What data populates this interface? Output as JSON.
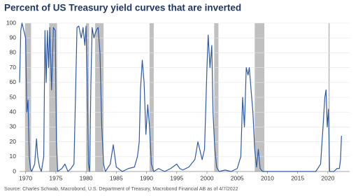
{
  "chart_data": {
    "type": "line",
    "title": "Percent of US Treasury yield curves that are inverted",
    "source": "Source: Charles Schwab, Macrobond, U.S. Department of Treasury, Macrobond Financial AB as of 4/7/2022",
    "x": [
      1969,
      1969.2,
      1969.4,
      1969.7,
      1970.0,
      1970.2,
      1970.4,
      1970.6,
      1970.8,
      1971,
      1971.5,
      1971.8,
      1972,
      1972.3,
      1972.6,
      1973.0,
      1973.2,
      1973.4,
      1973.6,
      1973.8,
      1974.0,
      1974.3,
      1974.6,
      1974.9,
      1975.1,
      1975.3,
      1976,
      1976.5,
      1977,
      1977.5,
      1978.0,
      1978.3,
      1978.5,
      1978.8,
      1979.2,
      1979.5,
      1979.8,
      1980.0,
      1980.2,
      1980.4,
      1980.6,
      1980.8,
      1981.0,
      1981.3,
      1981.5,
      1981.8,
      1982.0,
      1982.3,
      1982.6,
      1982.9,
      1983.2,
      1984.0,
      1984.5,
      1985,
      1986,
      1987,
      1988,
      1988.5,
      1988.8,
      1989.0,
      1989.3,
      1989.6,
      1989.9,
      1990.2,
      1990.5,
      1990.8,
      1991.2,
      1992,
      1993,
      1994,
      1995,
      1995.5,
      1996,
      1997,
      1998,
      1998.5,
      1998.8,
      1999.2,
      1999.6,
      2000.0,
      2000.2,
      2000.5,
      2000.8,
      2001.0,
      2001.3,
      2001.6,
      2002,
      2003,
      2004,
      2005,
      2005.6,
      2005.9,
      2006.2,
      2006.5,
      2006.8,
      2007.0,
      2007.3,
      2007.6,
      2007.9,
      2008.2,
      2008.5,
      2008.8,
      2009.2,
      2010,
      2012,
      2015,
      2018,
      2018.8,
      2019.2,
      2019.5,
      2019.7,
      2019.9,
      2020.1,
      2020.3,
      2021,
      2021.5,
      2021.9,
      2022.1,
      2022.25
    ],
    "series": [
      {
        "color": "#2e5aa6",
        "values": [
          60,
          95,
          100,
          95,
          90,
          40,
          48,
          10,
          2,
          0,
          5,
          22,
          10,
          3,
          0,
          10,
          95,
          60,
          95,
          70,
          97,
          55,
          97,
          95,
          20,
          0,
          2,
          5,
          0,
          2,
          5,
          60,
          97,
          98,
          90,
          97,
          85,
          98,
          60,
          5,
          0,
          60,
          97,
          90,
          93,
          96,
          97,
          80,
          30,
          5,
          0,
          5,
          18,
          3,
          0,
          2,
          3,
          10,
          20,
          55,
          75,
          60,
          25,
          45,
          30,
          5,
          0,
          2,
          0,
          2,
          5,
          2,
          1,
          3,
          8,
          20,
          15,
          8,
          15,
          70,
          92,
          70,
          85,
          40,
          15,
          3,
          0,
          1,
          0,
          2,
          10,
          50,
          30,
          70,
          65,
          70,
          55,
          40,
          15,
          3,
          15,
          2,
          0,
          0,
          0,
          0,
          0,
          5,
          30,
          50,
          55,
          30,
          42,
          0,
          0,
          2,
          2,
          8,
          24
        ]
      }
    ],
    "shaded_periods": [
      [
        1969.9,
        1970.9
      ],
      [
        1973.9,
        1975.2
      ],
      [
        1980.0,
        1980.5
      ],
      [
        1981.5,
        1982.9
      ],
      [
        1990.5,
        1991.2
      ],
      [
        2001.2,
        2001.9
      ],
      [
        2007.9,
        2009.5
      ],
      [
        2020.1,
        2020.3
      ]
    ],
    "shade_color": "#c0c0c0",
    "xlim": [
      1969,
      2023.6
    ],
    "xticks": [
      1970,
      1975,
      1980,
      1985,
      1990,
      1995,
      2000,
      2005,
      2010,
      2015,
      2020
    ],
    "ylim": [
      0,
      100
    ],
    "yticks": [
      0,
      10,
      20,
      30,
      40,
      50,
      60,
      70,
      80,
      90,
      100
    ],
    "grid": true
  }
}
